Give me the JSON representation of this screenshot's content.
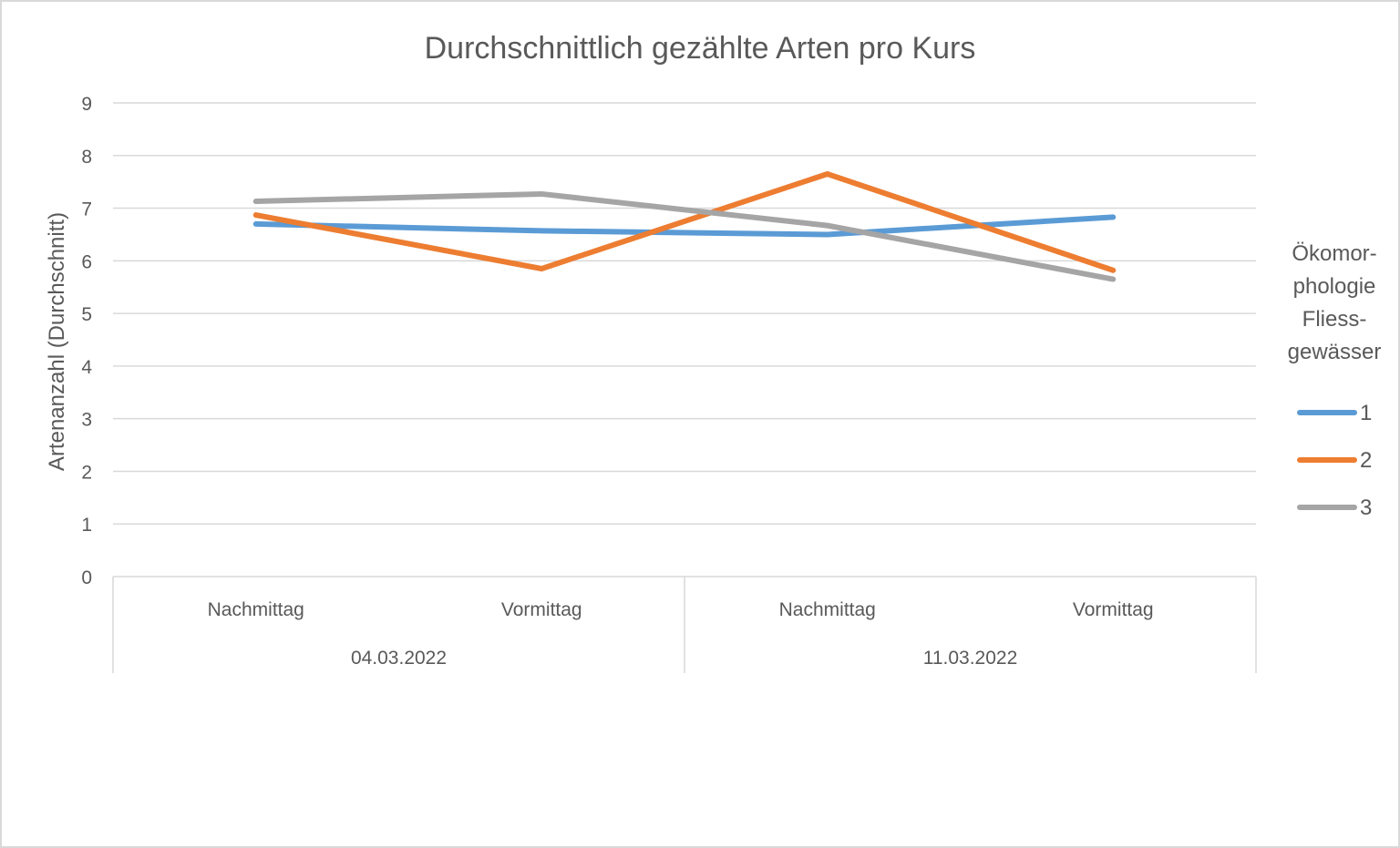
{
  "chart_data": {
    "type": "line",
    "title": "Durchschnittlich gezählte Arten pro Kurs",
    "ylabel": "Artenanzahl (Durchschnitt)",
    "xlabel": "",
    "ylim": [
      0,
      9
    ],
    "yticks": [
      "0",
      "1",
      "2",
      "3",
      "4",
      "5",
      "6",
      "7",
      "8",
      "9"
    ],
    "grid": true,
    "categories": [
      "Nachmittag",
      "Vormittag",
      "Nachmittag",
      "Vormittag"
    ],
    "category_groups": [
      {
        "label": "04.03.2022",
        "span": 2
      },
      {
        "label": "11.03.2022",
        "span": 2
      }
    ],
    "legend_title": [
      "Ökomor-",
      "phologie",
      "Fliess-",
      "gewässer"
    ],
    "legend_position": "right",
    "series": [
      {
        "name": "1",
        "color": "#5b9bd5",
        "values": [
          6.7,
          6.57,
          6.5,
          6.83
        ]
      },
      {
        "name": "2",
        "color": "#ed7d31",
        "values": [
          6.87,
          5.85,
          7.65,
          5.82
        ]
      },
      {
        "name": "3",
        "color": "#a5a5a5",
        "values": [
          7.13,
          7.27,
          6.67,
          5.65
        ]
      }
    ]
  }
}
